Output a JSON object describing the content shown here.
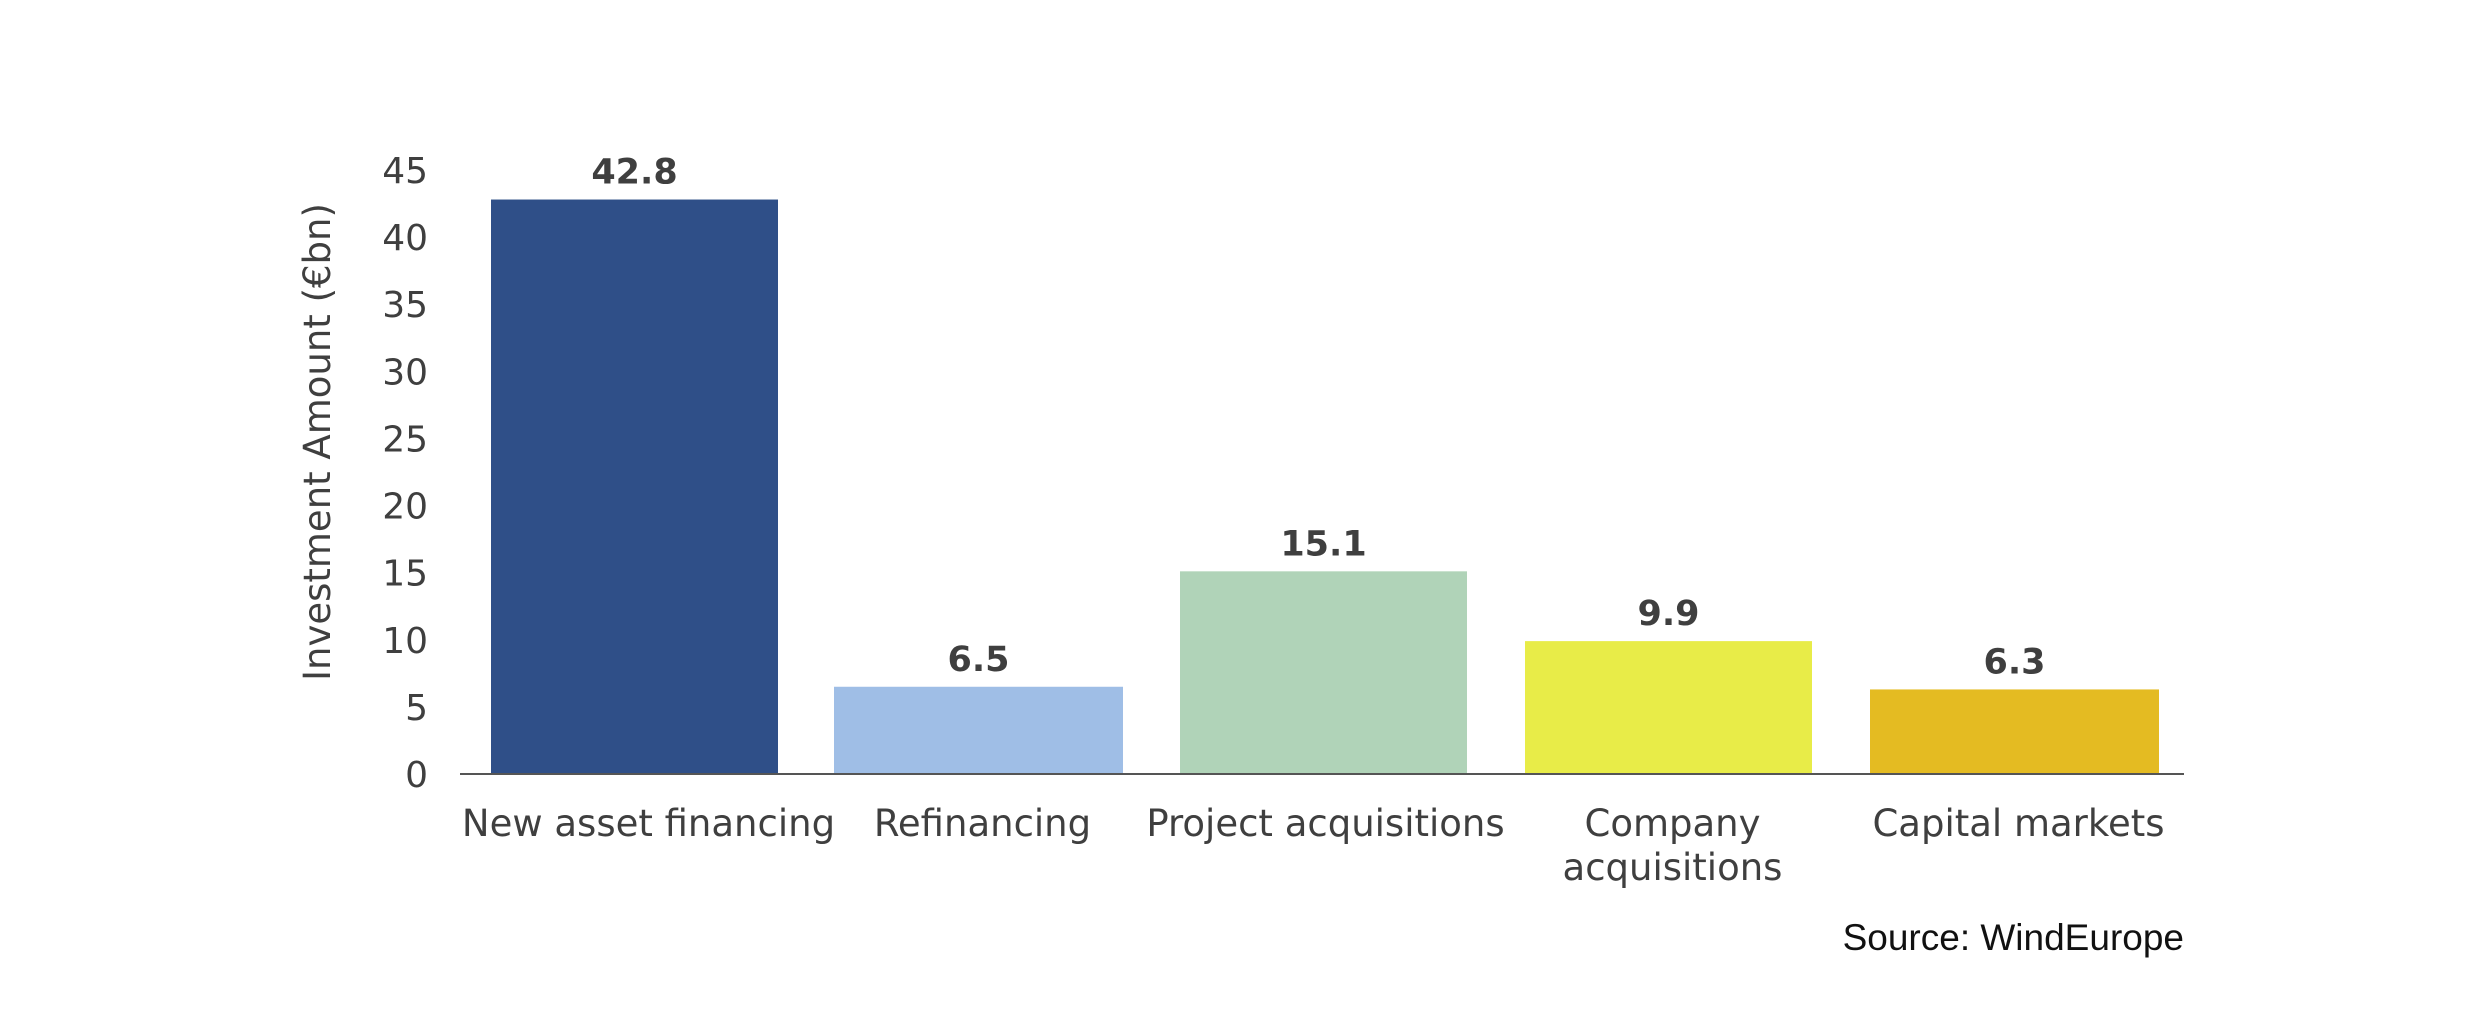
{
  "chart_data": {
    "type": "bar",
    "categories": [
      [
        "New asset financing"
      ],
      [
        "Refinancing"
      ],
      [
        "Project acquisitions"
      ],
      [
        "Company",
        "acquisitions"
      ],
      [
        "Capital markets"
      ]
    ],
    "values": [
      42.8,
      6.5,
      15.1,
      9.9,
      6.3
    ],
    "value_labels": [
      "42.8",
      "6.5",
      "15.1",
      "9.9",
      "6.3"
    ],
    "colors": [
      "#2f4f88",
      "#9fbee6",
      "#b0d3b8",
      "#e8ec48",
      "#e4bb22"
    ],
    "ylabel": "Investment Amount (€bn)",
    "ylim": [
      0,
      45
    ],
    "yticks": [
      0,
      5,
      10,
      15,
      20,
      25,
      30,
      35,
      40,
      45
    ],
    "grid": false,
    "legend": "none",
    "source": "Source: WindEurope"
  }
}
